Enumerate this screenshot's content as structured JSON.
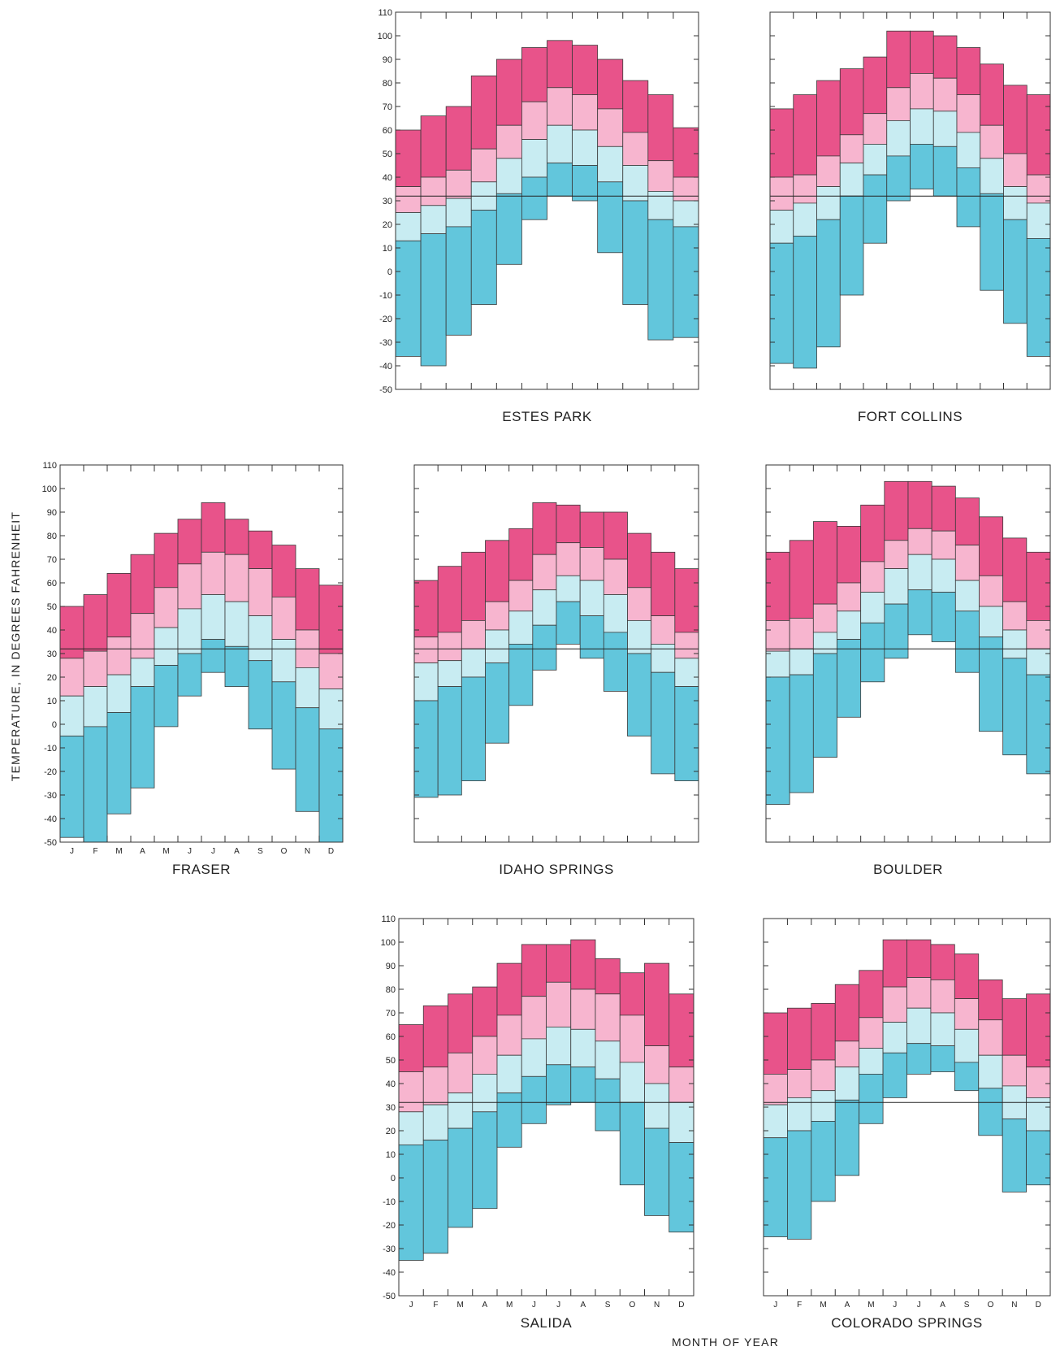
{
  "figure": {
    "ylabel": "TEMPERATURE, IN DEGREES FAHRENHEIT",
    "xlabel": "MONTH OF YEAR"
  },
  "colors": {
    "extreme_high": "#e8538a",
    "mean_high": "#f7b5cf",
    "mean_low": "#c8ecf2",
    "extreme_low": "#62c6dc",
    "outline": "#3a3a3a"
  },
  "chart_data": [
    {
      "type": "bar",
      "title": "ESTES PARK",
      "categories": [
        "J",
        "F",
        "M",
        "A",
        "M",
        "J",
        "J",
        "A",
        "S",
        "O",
        "N",
        "D"
      ],
      "ylim": [
        -50,
        110
      ],
      "yticks": [
        110,
        100,
        90,
        80,
        70,
        60,
        50,
        40,
        30,
        20,
        10,
        0,
        -10,
        -20,
        -30,
        -40,
        -50
      ],
      "freezing_line": 32,
      "show_y_labels": true,
      "show_month_labels": false,
      "series": [
        {
          "name": "",
          "values": [
            60,
            66,
            70,
            83,
            90,
            95,
            98,
            96,
            90,
            81,
            75,
            61
          ]
        },
        {
          "name": "",
          "values": [
            36,
            40,
            43,
            52,
            62,
            72,
            78,
            75,
            69,
            59,
            47,
            40
          ]
        },
        {
          "name": "",
          "values": [
            25,
            28,
            31,
            38,
            48,
            56,
            62,
            60,
            53,
            45,
            34,
            30
          ]
        },
        {
          "name": "",
          "values": [
            13,
            16,
            19,
            26,
            33,
            40,
            46,
            45,
            38,
            30,
            22,
            19
          ]
        },
        {
          "name": "",
          "values": [
            -36,
            -40,
            -27,
            -14,
            3,
            22,
            32,
            30,
            8,
            -14,
            -29,
            -28
          ]
        }
      ]
    },
    {
      "type": "bar",
      "title": "FORT COLLINS",
      "categories": [
        "J",
        "F",
        "M",
        "A",
        "M",
        "J",
        "J",
        "A",
        "S",
        "O",
        "N",
        "D"
      ],
      "ylim": [
        -50,
        110
      ],
      "yticks": [
        110,
        100,
        90,
        80,
        70,
        60,
        50,
        40,
        30,
        20,
        10,
        0,
        -10,
        -20,
        -30,
        -40,
        -50
      ],
      "freezing_line": 32,
      "show_y_labels": false,
      "show_month_labels": false,
      "series": [
        {
          "name": "",
          "values": [
            69,
            75,
            81,
            86,
            91,
            102,
            102,
            100,
            95,
            88,
            79,
            75
          ]
        },
        {
          "name": "",
          "values": [
            40,
            41,
            49,
            58,
            67,
            78,
            84,
            82,
            75,
            62,
            50,
            41
          ]
        },
        {
          "name": "",
          "values": [
            26,
            29,
            36,
            46,
            54,
            64,
            69,
            68,
            59,
            48,
            36,
            29
          ]
        },
        {
          "name": "",
          "values": [
            12,
            15,
            22,
            32,
            41,
            49,
            54,
            53,
            44,
            33,
            22,
            14
          ]
        },
        {
          "name": "",
          "values": [
            -39,
            -41,
            -32,
            -10,
            12,
            30,
            35,
            32,
            19,
            -8,
            -22,
            -36
          ]
        }
      ]
    },
    {
      "type": "bar",
      "title": "FRASER",
      "categories": [
        "J",
        "F",
        "M",
        "A",
        "M",
        "J",
        "J",
        "A",
        "S",
        "O",
        "N",
        "D"
      ],
      "ylim": [
        -50,
        110
      ],
      "yticks": [
        110,
        100,
        90,
        80,
        70,
        60,
        50,
        40,
        30,
        20,
        10,
        0,
        -10,
        -20,
        -30,
        -40,
        -50
      ],
      "freezing_line": 32,
      "show_y_labels": true,
      "show_month_labels": true,
      "series": [
        {
          "name": "",
          "values": [
            50,
            55,
            64,
            72,
            81,
            87,
            94,
            87,
            82,
            76,
            66,
            59
          ]
        },
        {
          "name": "",
          "values": [
            28,
            31,
            37,
            47,
            58,
            68,
            73,
            72,
            66,
            54,
            40,
            30
          ]
        },
        {
          "name": "",
          "values": [
            12,
            16,
            21,
            28,
            41,
            49,
            55,
            52,
            46,
            36,
            24,
            15
          ]
        },
        {
          "name": "",
          "values": [
            -5,
            -1,
            5,
            16,
            25,
            30,
            36,
            33,
            27,
            18,
            7,
            -2
          ]
        },
        {
          "name": "",
          "values": [
            -48,
            -50,
            -38,
            -27,
            -1,
            12,
            22,
            16,
            -2,
            -19,
            -37,
            -50
          ]
        }
      ]
    },
    {
      "type": "bar",
      "title": "IDAHO SPRINGS",
      "categories": [
        "J",
        "F",
        "M",
        "A",
        "M",
        "J",
        "J",
        "A",
        "S",
        "O",
        "N",
        "D"
      ],
      "ylim": [
        -50,
        110
      ],
      "yticks": [
        110,
        100,
        90,
        80,
        70,
        60,
        50,
        40,
        30,
        20,
        10,
        0,
        -10,
        -20,
        -30,
        -40,
        -50
      ],
      "freezing_line": 32,
      "show_y_labels": false,
      "show_month_labels": false,
      "series": [
        {
          "name": "",
          "values": [
            61,
            67,
            73,
            78,
            83,
            94,
            93,
            90,
            90,
            81,
            73,
            66
          ]
        },
        {
          "name": "",
          "values": [
            37,
            39,
            44,
            52,
            61,
            72,
            77,
            75,
            70,
            58,
            46,
            39
          ]
        },
        {
          "name": "",
          "values": [
            26,
            27,
            32,
            40,
            48,
            57,
            63,
            61,
            55,
            44,
            34,
            28
          ]
        },
        {
          "name": "",
          "values": [
            10,
            16,
            20,
            26,
            34,
            42,
            52,
            46,
            39,
            30,
            22,
            16
          ]
        },
        {
          "name": "",
          "values": [
            -31,
            -30,
            -24,
            -8,
            8,
            23,
            34,
            28,
            14,
            -5,
            -21,
            -24
          ]
        }
      ]
    },
    {
      "type": "bar",
      "title": "BOULDER",
      "categories": [
        "J",
        "F",
        "M",
        "A",
        "M",
        "J",
        "J",
        "A",
        "S",
        "O",
        "N",
        "D"
      ],
      "ylim": [
        -50,
        110
      ],
      "yticks": [
        110,
        100,
        90,
        80,
        70,
        60,
        50,
        40,
        30,
        20,
        10,
        0,
        -10,
        -20,
        -30,
        -40,
        -50
      ],
      "freezing_line": 32,
      "show_y_labels": false,
      "show_month_labels": false,
      "series": [
        {
          "name": "",
          "values": [
            73,
            78,
            86,
            84,
            93,
            103,
            103,
            101,
            96,
            88,
            79,
            73
          ]
        },
        {
          "name": "",
          "values": [
            44,
            45,
            51,
            60,
            69,
            78,
            83,
            82,
            76,
            63,
            52,
            44
          ]
        },
        {
          "name": "",
          "values": [
            31,
            32,
            39,
            48,
            56,
            66,
            72,
            70,
            61,
            50,
            40,
            32
          ]
        },
        {
          "name": "",
          "values": [
            20,
            21,
            30,
            36,
            43,
            51,
            57,
            56,
            48,
            37,
            28,
            21
          ]
        },
        {
          "name": "",
          "values": [
            -34,
            -29,
            -14,
            3,
            18,
            28,
            38,
            35,
            22,
            -3,
            -13,
            -21
          ]
        }
      ]
    },
    {
      "type": "bar",
      "title": "SALIDA",
      "categories": [
        "J",
        "F",
        "M",
        "A",
        "M",
        "J",
        "J",
        "A",
        "S",
        "O",
        "N",
        "D"
      ],
      "ylim": [
        -50,
        110
      ],
      "yticks": [
        110,
        100,
        90,
        80,
        70,
        60,
        50,
        40,
        30,
        20,
        10,
        0,
        -10,
        -20,
        -30,
        -40,
        -50
      ],
      "freezing_line": 32,
      "show_y_labels": true,
      "show_month_labels": true,
      "series": [
        {
          "name": "",
          "values": [
            65,
            73,
            78,
            81,
            91,
            99,
            99,
            101,
            93,
            87,
            91,
            78
          ]
        },
        {
          "name": "",
          "values": [
            45,
            47,
            53,
            60,
            69,
            77,
            83,
            80,
            78,
            69,
            56,
            47
          ]
        },
        {
          "name": "",
          "values": [
            28,
            31,
            36,
            44,
            52,
            59,
            64,
            63,
            58,
            49,
            40,
            32
          ]
        },
        {
          "name": "",
          "values": [
            14,
            16,
            21,
            28,
            36,
            43,
            48,
            47,
            42,
            32,
            21,
            15
          ]
        },
        {
          "name": "",
          "values": [
            -35,
            -32,
            -21,
            -13,
            13,
            23,
            31,
            32,
            20,
            -3,
            -16,
            -23
          ]
        }
      ]
    },
    {
      "type": "bar",
      "title": "COLORADO SPRINGS",
      "categories": [
        "J",
        "F",
        "M",
        "A",
        "M",
        "J",
        "J",
        "A",
        "S",
        "O",
        "N",
        "D"
      ],
      "ylim": [
        -50,
        110
      ],
      "yticks": [
        110,
        100,
        90,
        80,
        70,
        60,
        50,
        40,
        30,
        20,
        10,
        0,
        -10,
        -20,
        -30,
        -40,
        -50
      ],
      "freezing_line": 32,
      "show_y_labels": false,
      "show_month_labels": true,
      "series": [
        {
          "name": "",
          "values": [
            70,
            72,
            74,
            82,
            88,
            101,
            101,
            99,
            95,
            84,
            76,
            78
          ]
        },
        {
          "name": "",
          "values": [
            44,
            46,
            50,
            58,
            68,
            81,
            85,
            84,
            76,
            67,
            52,
            47
          ]
        },
        {
          "name": "",
          "values": [
            31,
            34,
            37,
            47,
            55,
            66,
            72,
            70,
            63,
            52,
            39,
            34
          ]
        },
        {
          "name": "",
          "values": [
            17,
            20,
            24,
            33,
            44,
            53,
            57,
            56,
            49,
            38,
            25,
            20
          ]
        },
        {
          "name": "",
          "values": [
            -25,
            -26,
            -10,
            1,
            23,
            34,
            44,
            45,
            37,
            18,
            -6,
            -3
          ]
        }
      ]
    }
  ]
}
